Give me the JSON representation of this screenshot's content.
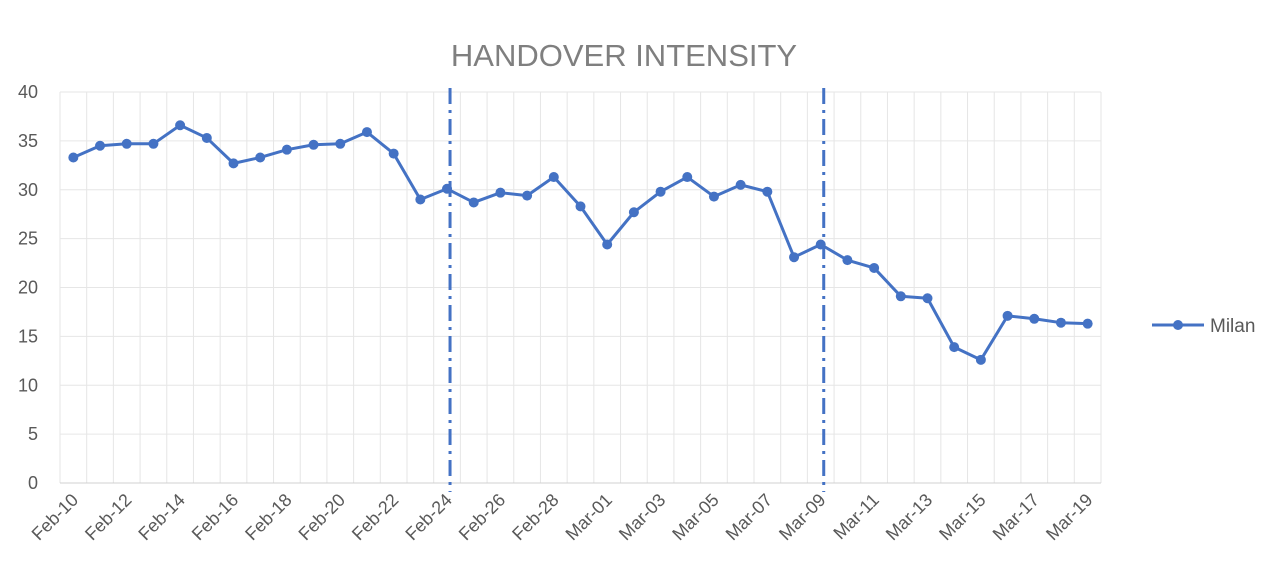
{
  "chart_data": {
    "type": "line",
    "title": "HANDOVER INTENSITY",
    "xlabel": "",
    "ylabel": "",
    "ylim": [
      0,
      40
    ],
    "yticks": [
      0,
      5,
      10,
      15,
      20,
      25,
      30,
      35,
      40
    ],
    "grid": true,
    "legend_position": "right",
    "x": [
      "Feb-10",
      "Feb-11",
      "Feb-12",
      "Feb-13",
      "Feb-14",
      "Feb-15",
      "Feb-16",
      "Feb-17",
      "Feb-18",
      "Feb-19",
      "Feb-20",
      "Feb-21",
      "Feb-22",
      "Feb-23",
      "Feb-24",
      "Feb-25",
      "Feb-26",
      "Feb-27",
      "Feb-28",
      "Feb-29",
      "Mar-01",
      "Mar-02",
      "Mar-03",
      "Mar-04",
      "Mar-05",
      "Mar-06",
      "Mar-07",
      "Mar-08",
      "Mar-09",
      "Mar-10",
      "Mar-11",
      "Mar-12",
      "Mar-13",
      "Mar-14",
      "Mar-15",
      "Mar-16",
      "Mar-17",
      "Mar-18",
      "Mar-19"
    ],
    "xtick_labels": [
      "Feb-10",
      "Feb-12",
      "Feb-14",
      "Feb-16",
      "Feb-18",
      "Feb-20",
      "Feb-22",
      "Feb-24",
      "Feb-26",
      "Feb-28",
      "Mar-01",
      "Mar-03",
      "Mar-05",
      "Mar-07",
      "Mar-09",
      "Mar-11",
      "Mar-13",
      "Mar-15",
      "Mar-17",
      "Mar-19"
    ],
    "series": [
      {
        "name": "Milan",
        "color": "#4472c4",
        "values": [
          33.3,
          34.5,
          34.7,
          34.7,
          36.6,
          35.3,
          32.7,
          33.3,
          34.1,
          34.6,
          34.7,
          35.9,
          33.7,
          29.0,
          30.1,
          28.7,
          29.7,
          29.4,
          31.3,
          28.3,
          24.4,
          27.7,
          29.8,
          31.3,
          29.3,
          30.5,
          29.8,
          23.1,
          24.4,
          22.8,
          22.0,
          19.1,
          18.9,
          13.9,
          12.6,
          17.1,
          16.8,
          16.4,
          16.3
        ]
      }
    ],
    "vertical_markers": [
      "Feb-24",
      "Mar-09"
    ],
    "marker_color": "#4472c4"
  }
}
